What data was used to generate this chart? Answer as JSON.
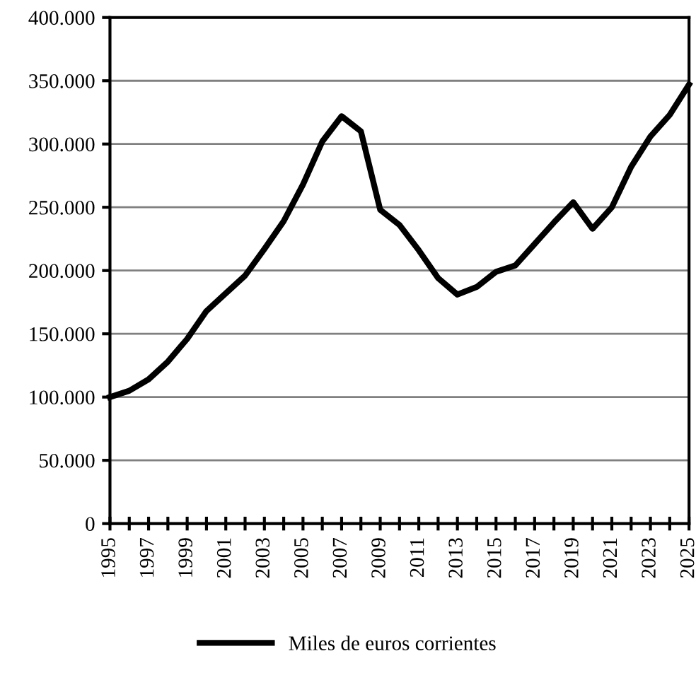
{
  "chart_data": {
    "type": "line",
    "x": [
      1995,
      1996,
      1997,
      1998,
      1999,
      2000,
      2001,
      2002,
      2003,
      2004,
      2005,
      2006,
      2007,
      2008,
      2009,
      2010,
      2011,
      2012,
      2013,
      2014,
      2015,
      2016,
      2017,
      2018,
      2019,
      2020,
      2021,
      2022,
      2023,
      2024,
      2025
    ],
    "series": [
      {
        "name": "Miles de euros corrientes",
        "color": "#000000",
        "values": [
          100000,
          105000,
          114000,
          128000,
          146000,
          168000,
          182000,
          196000,
          217000,
          239000,
          268000,
          302000,
          322000,
          310000,
          248000,
          236000,
          216000,
          194000,
          181000,
          187000,
          199000,
          204000,
          221000,
          238000,
          254000,
          233000,
          250000,
          282000,
          306000,
          323000,
          347000
        ]
      }
    ],
    "xlim": [
      1995,
      2025
    ],
    "xticks": [
      1995,
      {
        "value": 1996,
        "label": null
      },
      1997,
      {
        "value": 1998,
        "label": null
      },
      1999,
      {
        "value": 2000,
        "label": null
      },
      2001,
      {
        "value": 2002,
        "label": null
      },
      2003,
      {
        "value": 2004,
        "label": null
      },
      2005,
      {
        "value": 2006,
        "label": null
      },
      2007,
      {
        "value": 2008,
        "label": null
      },
      2009,
      {
        "value": 2010,
        "label": null
      },
      2011,
      {
        "value": 2012,
        "label": null
      },
      2013,
      {
        "value": 2014,
        "label": null
      },
      2015,
      {
        "value": 2016,
        "label": null
      },
      2017,
      {
        "value": 2018,
        "label": null
      },
      2019,
      {
        "value": 2020,
        "label": null
      },
      2021,
      {
        "value": 2022,
        "label": null
      },
      2023,
      {
        "value": 2024,
        "label": null
      },
      2025
    ],
    "ylim": [
      0,
      400000
    ],
    "yticks": [
      0,
      {
        "value": 50000,
        "label": "50.000"
      },
      {
        "value": 100000,
        "label": "100.000"
      },
      {
        "value": 150000,
        "label": "150.000"
      },
      {
        "value": 200000,
        "label": "200.000"
      },
      {
        "value": 250000,
        "label": "250.000"
      },
      {
        "value": 300000,
        "label": "300.000"
      },
      {
        "value": 350000,
        "label": "350.000"
      },
      {
        "value": 400000,
        "label": "400.000"
      }
    ],
    "grid": "y",
    "legend": "bottom",
    "marker": "none",
    "line_style": "solid"
  }
}
